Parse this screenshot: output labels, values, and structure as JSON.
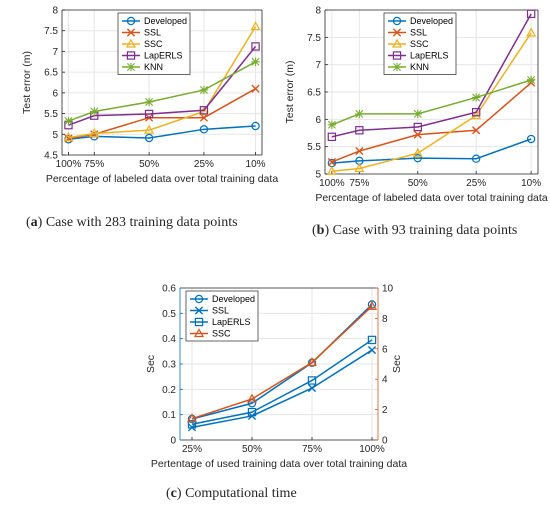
{
  "captions": {
    "a": {
      "tag": "a",
      "text": "Case with 283 training data points"
    },
    "b": {
      "tag": "b",
      "text": "Case with 93 training data points"
    },
    "c": {
      "tag": "c",
      "text": "Computational time"
    }
  },
  "colors": {
    "blue": "#0072BD",
    "orange": "#D95319",
    "yellow": "#EDB120",
    "purple": "#7E2F8E",
    "green": "#77AC30",
    "axis": "#262626"
  },
  "chart_data": [
    {
      "id": "a",
      "type": "line",
      "categories": [
        "100%",
        "75%",
        "50%",
        "25%",
        "10%"
      ],
      "x": [
        1,
        1.8,
        3.5,
        5.2,
        6.8
      ],
      "xlim": [
        0.8,
        7.0
      ],
      "xlabel": "Percentage of labeled data over total training data",
      "ylabel": "Test error (m)",
      "ylim": [
        4.5,
        8
      ],
      "yticks": [
        4.5,
        5,
        5.5,
        6,
        6.5,
        7,
        7.5,
        8
      ],
      "grid": true,
      "legend": "top-left",
      "series": [
        {
          "name": "Developed",
          "marker": "circle",
          "color": "blue",
          "values": [
            4.88,
            4.95,
            4.91,
            5.12,
            5.2
          ]
        },
        {
          "name": "SSL",
          "marker": "x",
          "color": "orange",
          "values": [
            4.9,
            5.0,
            5.4,
            5.4,
            6.1
          ]
        },
        {
          "name": "SSC",
          "marker": "triangle",
          "color": "yellow",
          "values": [
            4.92,
            5.02,
            5.1,
            5.55,
            7.6
          ]
        },
        {
          "name": "LapERLS",
          "marker": "square",
          "color": "purple",
          "values": [
            5.22,
            5.45,
            5.49,
            5.58,
            7.12
          ]
        },
        {
          "name": "KNN",
          "marker": "star",
          "color": "green",
          "values": [
            5.32,
            5.55,
            5.78,
            6.07,
            6.75
          ]
        }
      ]
    },
    {
      "id": "b",
      "type": "line",
      "categories": [
        "100%",
        "75%",
        "50%",
        "25%",
        "10%"
      ],
      "x": [
        1,
        1.8,
        3.5,
        5.2,
        6.8
      ],
      "xlim": [
        0.8,
        7.0
      ],
      "xlabel": "Percentage of labeled data over total training data",
      "ylabel": "Test error (m)",
      "ylim": [
        5,
        8
      ],
      "yticks": [
        5,
        5.5,
        6,
        6.5,
        7,
        7.5,
        8
      ],
      "grid": true,
      "legend": "top-left",
      "series": [
        {
          "name": "Developed",
          "marker": "circle",
          "color": "blue",
          "values": [
            5.2,
            5.24,
            5.29,
            5.28,
            5.64
          ]
        },
        {
          "name": "SSL",
          "marker": "x",
          "color": "orange",
          "values": [
            5.22,
            5.42,
            5.72,
            5.8,
            6.67
          ]
        },
        {
          "name": "SSC",
          "marker": "triangle",
          "color": "yellow",
          "values": [
            5.05,
            5.1,
            5.38,
            6.07,
            7.58
          ]
        },
        {
          "name": "LapERLS",
          "marker": "square",
          "color": "purple",
          "values": [
            5.68,
            5.8,
            5.86,
            6.13,
            7.93
          ]
        },
        {
          "name": "KNN",
          "marker": "star",
          "color": "green",
          "values": [
            5.9,
            6.1,
            6.1,
            6.4,
            6.72
          ]
        }
      ]
    },
    {
      "id": "c",
      "type": "line",
      "categories": [
        "25%",
        "50%",
        "75%",
        "100%"
      ],
      "x": [
        1,
        2,
        3,
        4
      ],
      "xlim": [
        0.8,
        4.1
      ],
      "xlabel": "Pertentage of used training data over total training data",
      "ylabel": "Sec",
      "ylabel_right": "Sec",
      "ylim": [
        0,
        0.6
      ],
      "yticks": [
        0,
        0.1,
        0.2,
        0.3,
        0.4,
        0.5,
        0.6
      ],
      "ylim_right": [
        0,
        10
      ],
      "yticks_right": [
        0,
        2,
        4,
        6,
        8,
        10
      ],
      "grid": true,
      "legend": "top-left",
      "series": [
        {
          "name": "Developed",
          "marker": "circle",
          "color": "blue",
          "axis": "left",
          "values": [
            0.083,
            0.145,
            0.305,
            0.535
          ]
        },
        {
          "name": "SSL",
          "marker": "x",
          "color": "blue",
          "axis": "left",
          "values": [
            0.05,
            0.095,
            0.205,
            0.355
          ]
        },
        {
          "name": "LapERLS",
          "marker": "square",
          "color": "blue",
          "axis": "left",
          "values": [
            0.062,
            0.11,
            0.235,
            0.395
          ]
        },
        {
          "name": "SSC",
          "marker": "triangle",
          "color": "orange",
          "axis": "right",
          "values": [
            1.4,
            2.7,
            5.1,
            8.8
          ]
        }
      ]
    }
  ]
}
